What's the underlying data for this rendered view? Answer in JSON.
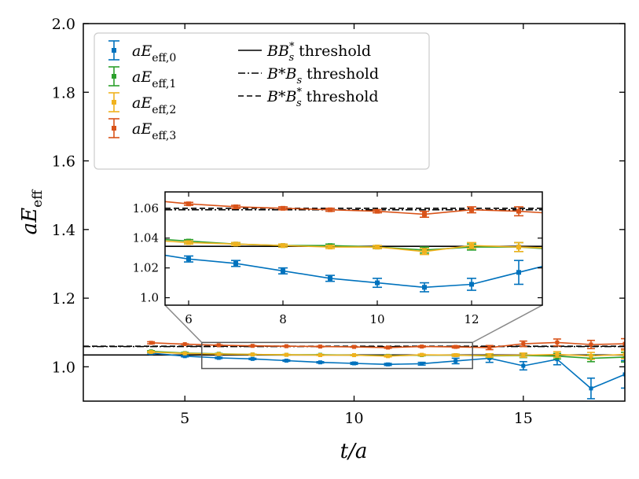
{
  "chart_data": {
    "type": "line",
    "xlabel": "t/a",
    "ylabel": "aE_eff",
    "xlim": [
      2,
      18
    ],
    "ylim": [
      0.9,
      2.0
    ],
    "xticks": [
      5,
      10,
      15
    ],
    "yticks": [
      1.0,
      1.2,
      1.4,
      1.6,
      1.8,
      2.0
    ],
    "ytick_labels": [
      "1.0",
      "1.2",
      "1.4",
      "1.6",
      "1.8",
      "2.0"
    ],
    "series": [
      {
        "name": "aE_eff,0",
        "sub": "eff,0",
        "color": "#0072BD",
        "x": [
          4,
          5,
          6,
          7,
          8,
          9,
          10,
          11,
          12,
          13,
          14,
          15,
          16,
          17,
          18
        ],
        "y": [
          1.04,
          1.031,
          1.026,
          1.023,
          1.018,
          1.013,
          1.01,
          1.007,
          1.009,
          1.017,
          1.025,
          1.003,
          1.022,
          0.937,
          0.978
        ],
        "err": [
          0.003,
          0.002,
          0.002,
          0.002,
          0.002,
          0.002,
          0.003,
          0.003,
          0.004,
          0.008,
          0.012,
          0.012,
          0.016,
          0.03,
          0.04
        ]
      },
      {
        "name": "aE_eff,1",
        "sub": "eff,1",
        "color": "#2CA02C",
        "x": [
          4,
          5,
          6,
          7,
          8,
          9,
          10,
          11,
          12,
          13,
          14,
          15,
          16,
          17,
          18
        ],
        "y": [
          1.045,
          1.04,
          1.038,
          1.036,
          1.035,
          1.035,
          1.034,
          1.032,
          1.034,
          1.034,
          1.032,
          1.033,
          1.031,
          1.025,
          1.028
        ],
        "err": [
          0.002,
          0.002,
          0.001,
          0.001,
          0.001,
          0.001,
          0.001,
          0.002,
          0.002,
          0.003,
          0.005,
          0.006,
          0.008,
          0.01,
          0.014
        ]
      },
      {
        "name": "aE_eff,2",
        "sub": "eff,2",
        "color": "#F0B21E",
        "x": [
          4,
          5,
          6,
          7,
          8,
          9,
          10,
          11,
          12,
          13,
          14,
          15,
          16,
          17,
          18
        ],
        "y": [
          1.043,
          1.039,
          1.037,
          1.036,
          1.035,
          1.034,
          1.034,
          1.031,
          1.035,
          1.034,
          1.033,
          1.034,
          1.036,
          1.032,
          1.036
        ],
        "err": [
          0.002,
          0.001,
          0.001,
          0.001,
          0.001,
          0.001,
          0.001,
          0.002,
          0.002,
          0.003,
          0.005,
          0.006,
          0.008,
          0.01,
          0.012
        ]
      },
      {
        "name": "aE_eff,3",
        "sub": "eff,3",
        "color": "#D95319",
        "x": [
          4,
          5,
          6,
          7,
          8,
          9,
          10,
          11,
          12,
          13,
          14,
          15,
          16,
          17,
          18
        ],
        "y": [
          1.07,
          1.066,
          1.063,
          1.061,
          1.06,
          1.059,
          1.058,
          1.056,
          1.059,
          1.058,
          1.056,
          1.067,
          1.071,
          1.065,
          1.067
        ],
        "err": [
          0.003,
          0.001,
          0.001,
          0.001,
          0.001,
          0.001,
          0.001,
          0.002,
          0.002,
          0.003,
          0.006,
          0.008,
          0.01,
          0.012,
          0.015
        ]
      }
    ],
    "thresholds": [
      {
        "name": "BB_s* threshold",
        "label_main": "BB",
        "label_sup": "*",
        "label_sub": "s",
        "label_suffix": " threshold",
        "value": 1.0345,
        "style": "solid"
      },
      {
        "name": "B*B_s threshold",
        "label_main": "B*B",
        "label_sup": "",
        "label_sub": "s",
        "label_suffix": " threshold",
        "value": 1.059,
        "style": "dashdot"
      },
      {
        "name": "B*B_s* threshold",
        "label_main": "B*B",
        "label_sup": "*",
        "label_sub": "s",
        "label_suffix": " threshold",
        "value": 1.06,
        "style": "dashed"
      }
    ],
    "inset": {
      "xlim": [
        5.5,
        13.5
      ],
      "ylim": [
        0.995,
        1.071
      ],
      "xticks": [
        6,
        8,
        10,
        12
      ],
      "yticks": [
        1.0,
        1.02,
        1.04,
        1.06
      ],
      "ytick_labels": [
        "1.0",
        "1.02",
        "1.04",
        "1.06"
      ]
    },
    "legend_position": "upper-left"
  }
}
